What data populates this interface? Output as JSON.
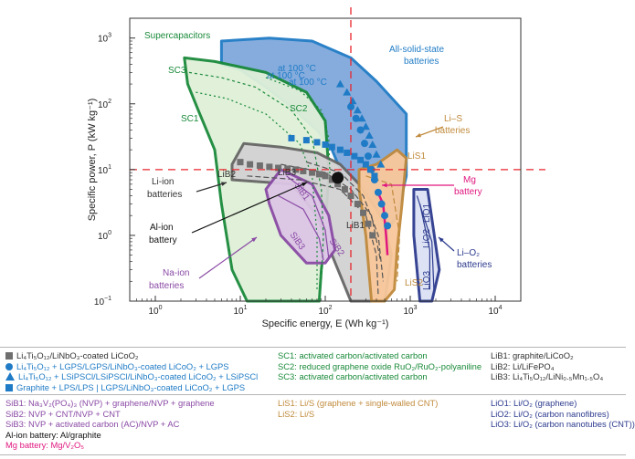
{
  "chart_data": {
    "type": "ragone",
    "xlabel": "Specific energy, E (Wh kg⁻¹)",
    "ylabel": "Specific power, P (kW kg⁻¹)",
    "x_scale": "log",
    "y_scale": "log",
    "xlim": [
      0.5,
      20000
    ],
    "ylim": [
      0.1,
      2000
    ],
    "x_ticks": [
      {
        "value": 1,
        "base": "10",
        "exp": "0"
      },
      {
        "value": 10,
        "base": "10",
        "exp": "1"
      },
      {
        "value": 100,
        "base": "10",
        "exp": "2"
      },
      {
        "value": 1000,
        "base": "10",
        "exp": "3"
      },
      {
        "value": 10000,
        "base": "10",
        "exp": "4"
      }
    ],
    "y_ticks": [
      {
        "value": 0.1,
        "base": "10",
        "exp": "−1"
      },
      {
        "value": 1,
        "base": "10",
        "exp": "0"
      },
      {
        "value": 10,
        "base": "10",
        "exp": "1"
      },
      {
        "value": 100,
        "base": "10",
        "exp": "2"
      },
      {
        "value": 1000,
        "base": "10",
        "exp": "3"
      }
    ],
    "reference_lines": {
      "x": 200,
      "y": 10
    },
    "regions": [
      {
        "key": "ss",
        "color": "#7fa8dc",
        "stroke": "#1f7bc5",
        "poly": [
          [
            6,
            900
          ],
          [
            22,
            1000
          ],
          [
            70,
            900
          ],
          [
            200,
            500
          ],
          [
            400,
            220
          ],
          [
            900,
            70
          ],
          [
            900,
            8
          ],
          [
            700,
            2
          ],
          [
            500,
            1
          ],
          [
            350,
            1
          ],
          [
            300,
            1.5
          ],
          [
            250,
            3
          ],
          [
            200,
            6
          ],
          [
            150,
            10
          ],
          [
            120,
            20
          ],
          [
            80,
            40
          ],
          [
            40,
            90
          ],
          [
            20,
            180
          ],
          [
            10,
            330
          ],
          [
            6,
            400
          ]
        ]
      },
      {
        "key": "sc",
        "color": "#dff0d8",
        "stroke": "#1a8a3a",
        "poly": [
          [
            2.2,
            500
          ],
          [
            5,
            440
          ],
          [
            20,
            300
          ],
          [
            60,
            150
          ],
          [
            100,
            55
          ],
          [
            110,
            10
          ],
          [
            100,
            1
          ],
          [
            90,
            0.3
          ],
          [
            85,
            0.1
          ],
          [
            55,
            0.1
          ],
          [
            30,
            0.1
          ],
          [
            12,
            0.1
          ],
          [
            8,
            0.3
          ],
          [
            6,
            3
          ],
          [
            5,
            20
          ],
          [
            3.2,
            80
          ],
          [
            2.4,
            200
          ]
        ]
      },
      {
        "key": "liion",
        "color": "#d2d2d2",
        "stroke": "#666666",
        "poly": [
          [
            8,
            12
          ],
          [
            11,
            25
          ],
          [
            30,
            22
          ],
          [
            80,
            18
          ],
          [
            150,
            12
          ],
          [
            250,
            6
          ],
          [
            400,
            2.5
          ],
          [
            500,
            1.5
          ],
          [
            600,
            0.5
          ],
          [
            500,
            0.1
          ],
          [
            300,
            0.1
          ],
          [
            200,
            0.1
          ],
          [
            120,
            0.5
          ],
          [
            80,
            2
          ],
          [
            40,
            6
          ],
          [
            8,
            7
          ]
        ]
      },
      {
        "key": "lis",
        "color": "#f9c89b",
        "stroke": "#c08a3c",
        "poly": [
          [
            250,
            10
          ],
          [
            400,
            12
          ],
          [
            700,
            20
          ],
          [
            900,
            15
          ],
          [
            800,
            3
          ],
          [
            700,
            0.6
          ],
          [
            650,
            0.15
          ],
          [
            500,
            0.1
          ],
          [
            350,
            0.1
          ],
          [
            300,
            1
          ],
          [
            250,
            5
          ]
        ]
      },
      {
        "key": "lio2",
        "color": "#dce2f5",
        "stroke": "#2d3b8e",
        "poly": [
          [
            1100,
            5
          ],
          [
            1600,
            5
          ],
          [
            2200,
            0.3
          ],
          [
            1800,
            0.1
          ],
          [
            1300,
            0.1
          ],
          [
            1100,
            1
          ]
        ]
      },
      {
        "key": "sib",
        "color": "#dcc6e6",
        "stroke": "#8a4aa5",
        "poly": [
          [
            30,
            10
          ],
          [
            70,
            6
          ],
          [
            110,
            2
          ],
          [
            130,
            0.6
          ],
          [
            100,
            0.38
          ],
          [
            60,
            0.38
          ],
          [
            30,
            1
          ],
          [
            22,
            3
          ],
          [
            20,
            5
          ]
        ]
      }
    ],
    "series": [
      {
        "name": "Li4Ti5O12/LiNbO3-coated LiCoO2",
        "marker": "square",
        "color": "#6f6f6f",
        "x": [
          10,
          13,
          17,
          22,
          28,
          36,
          45,
          55,
          70,
          85,
          100,
          120,
          140,
          170,
          200,
          240,
          280,
          320,
          360
        ],
        "y": [
          13,
          12,
          11.5,
          11,
          10.6,
          10.3,
          10,
          9.5,
          9,
          8.5,
          8,
          7,
          6,
          5,
          4,
          3,
          2.2,
          1.5,
          1
        ]
      },
      {
        "name": "Li4Ti5O12 + LGPS/LGPS/LiNbO3-coated LiCoO2 + LGPS",
        "marker": "circle",
        "color": "#1f7bc5",
        "x": [
          200,
          230,
          260,
          290,
          320,
          350,
          380,
          420,
          460,
          500,
          540
        ],
        "y": [
          90,
          60,
          40,
          25,
          16,
          10,
          7,
          4.5,
          3,
          2,
          1.4
        ]
      },
      {
        "name": "Li4Ti5O12 + LSiPSCl/LSiPSCl/LiNbO3-coated LiCoO2 + LSiPSCl",
        "marker": "triangle",
        "color": "#1f7bc5",
        "x": [
          150,
          180,
          210,
          240,
          270,
          300,
          330,
          360,
          400,
          450
        ],
        "y": [
          200,
          150,
          110,
          80,
          60,
          45,
          33,
          24,
          17,
          12
        ]
      },
      {
        "name": "Graphite + LPS/LPS | LGPS/LiNbO3-coated LiCoO2 + LGPS",
        "marker": "square",
        "color": "#1f7bc5",
        "x": [
          40,
          60,
          80,
          100,
          120,
          150,
          180,
          220,
          260,
          300,
          340,
          380
        ],
        "y": [
          30,
          28,
          26,
          24,
          22,
          20,
          18,
          16,
          14,
          12,
          10,
          8
        ]
      }
    ],
    "region_labels": [
      {
        "text": "Supercapacitors",
        "class": "green"
      },
      {
        "text": "All-solid-state",
        "class": "blue"
      },
      {
        "text": "batteries",
        "class": "blue"
      },
      {
        "text": "SC3",
        "class": "green"
      },
      {
        "text": "SC2",
        "class": "green"
      },
      {
        "text": "SC1",
        "class": "green"
      },
      {
        "text": "at 100 °C",
        "class": "blue"
      },
      {
        "text": "Li–S",
        "class": "orange"
      },
      {
        "text": "batteries",
        "class": "orange"
      },
      {
        "text": "LiS1",
        "class": "orange"
      },
      {
        "text": "LiS2",
        "class": "orange"
      },
      {
        "text": "LiB2",
        "class": "grey"
      },
      {
        "text": "LiB3",
        "class": "grey"
      },
      {
        "text": "LiB1",
        "class": "grey"
      },
      {
        "text": "Li-ion",
        "class": "grey"
      },
      {
        "text": "batteries",
        "class": "grey"
      },
      {
        "text": "Al-ion",
        "class": "black"
      },
      {
        "text": "battery",
        "class": "black"
      },
      {
        "text": "Na-ion",
        "class": "purple"
      },
      {
        "text": "batteries",
        "class": "purple"
      },
      {
        "text": "SiB1",
        "class": "purple"
      },
      {
        "text": "SiB2",
        "class": "purple"
      },
      {
        "text": "SiB3",
        "class": "purple"
      },
      {
        "text": "Mg",
        "class": "magenta"
      },
      {
        "text": "battery",
        "class": "magenta"
      },
      {
        "text": "LiO1",
        "class": "navy"
      },
      {
        "text": "LiO2",
        "class": "navy"
      },
      {
        "text": "LiO3",
        "class": "navy"
      },
      {
        "text": "Li–O₂",
        "class": "navy"
      },
      {
        "text": "batteries",
        "class": "navy"
      }
    ]
  },
  "legend": {
    "marker_entries": [
      "Li₄Ti₅O₁₂/LiNbO₃-coated LiCoO₂",
      "Li₄Ti₅O₁₂ + LGPS/LGPS/LiNbO₃-coated LiCoO₂ + LGPS",
      "Li₄Ti₅O₁₂ + LSiPSCl/LSiPSCl/LiNbO₃-coated LiCoO₂ + LSiPSCl",
      "Graphite + LPS/LPS | LGPS/LiNbO₃-coated LiCoO₂ + LGPS"
    ],
    "sc": [
      "SC1: activated carbon/activated carbon",
      "SC2: reduced graphene oxide RuO₂/RuO₂-polyaniline",
      "SC3: activated carbon/activated carbon"
    ],
    "lib": [
      "LiB1: graphite/LiCoO₂",
      "LiB2: Li/LiFePO₄",
      "LiB3: Li₄Ti₅O₁₂/LiNi₀.₅Mn₁.₅O₄"
    ],
    "sib": [
      "SiB1: Na₃V₂(PO₄)₃ (NVP) + graphene/NVP + graphene",
      "SiB2: NVP + CNT/NVP + CNT",
      "SiB3: NVP + activated carbon (AC)/NVP + AC"
    ],
    "al": "Al-ion battery: Al/graphite",
    "mg": "Mg battery: Mg/V₂O₅",
    "lis": [
      "LiS1: Li/S (graphene + single-walled CNT)",
      "LiS2: Li/S"
    ],
    "lio": [
      "LiO1: Li/O₂ (graphene)",
      "LiO2: Li/O₂ (carbon nanofibres)",
      "LiO3: Li/O₂ (carbon nanotubes (CNT))"
    ]
  }
}
